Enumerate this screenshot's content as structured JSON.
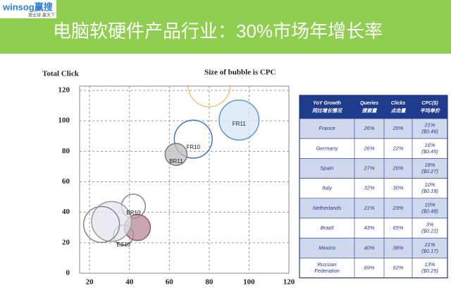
{
  "header": {
    "logo": "winsog赢搜",
    "slogan": "搜全球·赢天下",
    "title": "电脑软硬件产品行业：30%市场年增长率"
  },
  "chart_data": {
    "type": "scatter",
    "y_label": "Total Click",
    "note": "Size of bubble is CPC",
    "x": [
      95,
      72,
      80,
      63.4,
      42,
      37,
      44,
      31,
      26
    ],
    "values": [
      100.5,
      88,
      123,
      78,
      44,
      25,
      30,
      34,
      32
    ],
    "sizes": [
      10,
      9.5,
      10.5,
      5.5,
      6,
      5,
      6.5,
      10,
      9
    ],
    "labels": [
      "FR11",
      "FR10",
      null,
      "BR11",
      "BR10",
      "ES10",
      null,
      null,
      null
    ],
    "colors": [
      "#5b9bd5",
      "#3f78d0",
      "#f2c46d",
      "#777777",
      "#888888",
      "#777777",
      "#8a5a6a",
      "#999999",
      "#888888"
    ],
    "fills": [
      "#d6e6f6",
      "none",
      "none",
      "#bdbdbd",
      "none",
      "none",
      "#b58a98",
      "#e4e4ec",
      "none"
    ],
    "xlim": [
      15,
      120
    ],
    "ylim": [
      0,
      120
    ],
    "xticks": [
      20,
      40,
      60,
      80,
      100,
      120
    ],
    "yticks": [
      0,
      20,
      40,
      60,
      80,
      100,
      120
    ],
    "grid": true
  },
  "table": {
    "header": [
      [
        "YoY Growth",
        "同比增长情况"
      ],
      [
        "Queries",
        "搜索量"
      ],
      [
        "Clicks",
        "点击量"
      ],
      [
        "CPC($)",
        "平均单价"
      ]
    ],
    "rows": [
      [
        [
          "France"
        ],
        [
          "26%"
        ],
        [
          "20%"
        ],
        [
          "21%",
          "($0.46)"
        ]
      ],
      [
        [
          "Germany"
        ],
        [
          "26%"
        ],
        [
          "22%"
        ],
        [
          "16%",
          "($0.45)"
        ]
      ],
      [
        [
          "Spain"
        ],
        [
          "27%"
        ],
        [
          "20%"
        ],
        [
          "18%",
          "($0.27)"
        ]
      ],
      [
        [
          "Italy"
        ],
        [
          "32%"
        ],
        [
          "30%"
        ],
        [
          "10%",
          "($0.18)"
        ]
      ],
      [
        [
          "Netherlands"
        ],
        [
          "21%"
        ],
        [
          "23%"
        ],
        [
          "10%",
          "($0.48)"
        ]
      ],
      [
        [
          "Brazil"
        ],
        [
          "43%"
        ],
        [
          "65%"
        ],
        [
          "3%",
          "($0.22)"
        ]
      ],
      [
        [
          "Mexico"
        ],
        [
          "40%"
        ],
        [
          "38%"
        ],
        [
          "21%",
          "($0.17)"
        ]
      ],
      [
        [
          "Russian",
          "Federation"
        ],
        [
          "69%"
        ],
        [
          "62%"
        ],
        [
          "13%",
          "($0.25)"
        ]
      ]
    ]
  }
}
